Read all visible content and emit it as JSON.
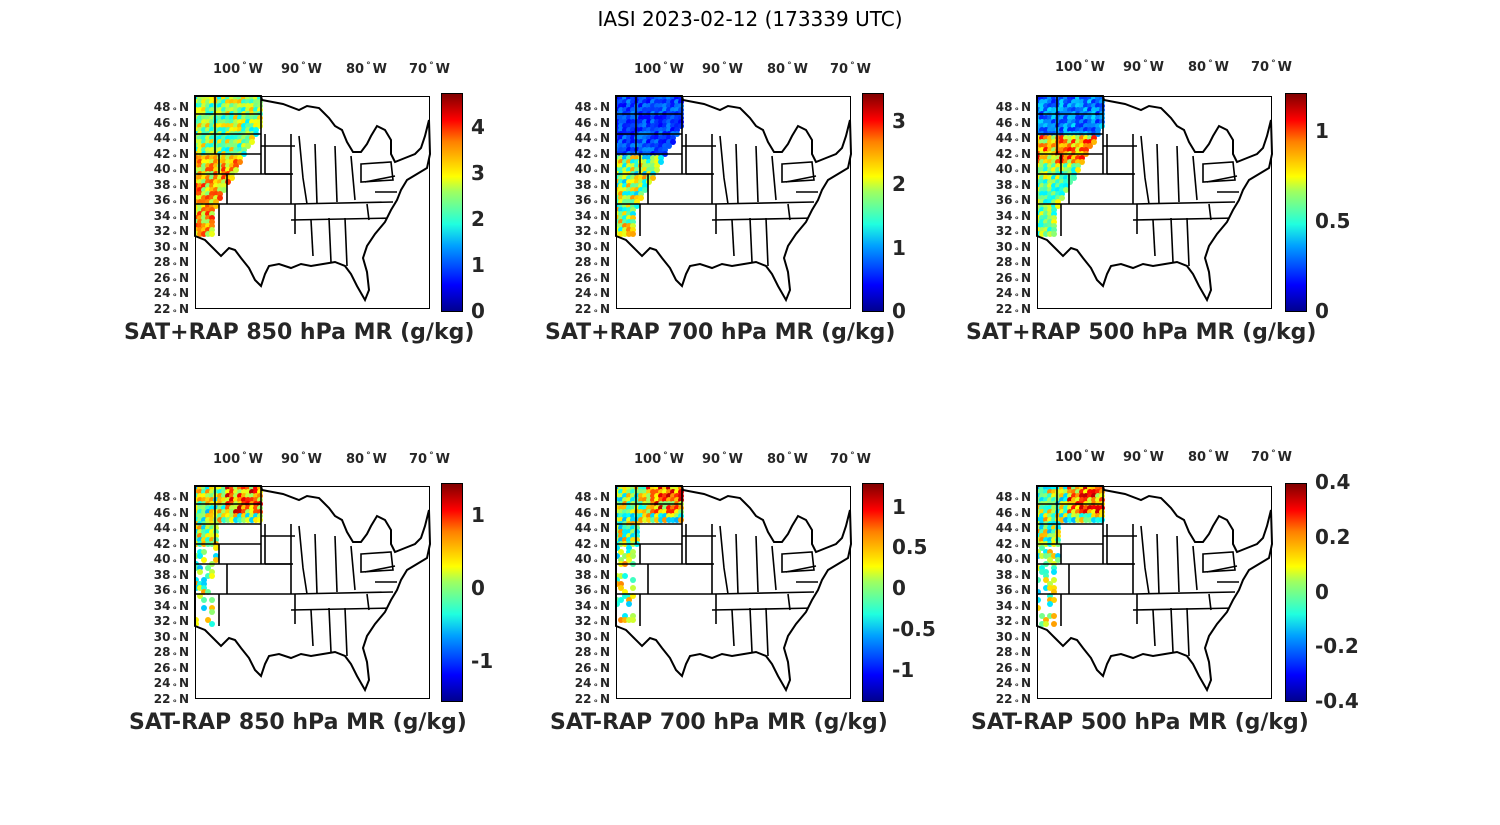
{
  "figure_title": "IASI 2023-02-12 (173339 UTC)",
  "lon_labels": [
    {
      "deg": "100",
      "dir": "W"
    },
    {
      "deg": "90",
      "dir": "W"
    },
    {
      "deg": "80",
      "dir": "W"
    },
    {
      "deg": "70",
      "dir": "W"
    }
  ],
  "lat_labels": [
    {
      "deg": "48",
      "dir": "N"
    },
    {
      "deg": "46",
      "dir": "N"
    },
    {
      "deg": "44",
      "dir": "N"
    },
    {
      "deg": "42",
      "dir": "N"
    },
    {
      "deg": "40",
      "dir": "N"
    },
    {
      "deg": "38",
      "dir": "N"
    },
    {
      "deg": "36",
      "dir": "N"
    },
    {
      "deg": "34",
      "dir": "N"
    },
    {
      "deg": "32",
      "dir": "N"
    },
    {
      "deg": "30",
      "dir": "N"
    },
    {
      "deg": "28",
      "dir": "N"
    },
    {
      "deg": "26",
      "dir": "N"
    },
    {
      "deg": "24",
      "dir": "N"
    },
    {
      "deg": "22",
      "dir": "N"
    }
  ],
  "colormap": "jet",
  "panels": [
    {
      "id": "sat-rap-sum-850",
      "title": "SAT+RAP 850 hPa MR (g/kg)",
      "colorbar": {
        "min": 0,
        "max": 4.75,
        "ticks": [
          "0",
          "1",
          "2",
          "3",
          "4"
        ],
        "tick_values": [
          0,
          1,
          2,
          3,
          4
        ]
      }
    },
    {
      "id": "sat-rap-sum-700",
      "title": "SAT+RAP 700 hPa MR (g/kg)",
      "colorbar": {
        "min": 0,
        "max": 3.45,
        "ticks": [
          "0",
          "1",
          "2",
          "3"
        ],
        "tick_values": [
          0,
          1,
          2,
          3
        ]
      }
    },
    {
      "id": "sat-rap-sum-500",
      "title": "SAT+RAP 500 hPa MR (g/kg)",
      "colorbar": {
        "min": 0,
        "max": 1.22,
        "ticks": [
          "0",
          "0.5",
          "1"
        ],
        "tick_values": [
          0,
          0.5,
          1
        ]
      }
    },
    {
      "id": "sat-rap-diff-850",
      "title": "SAT-RAP 850 hPa MR (g/kg)",
      "colorbar": {
        "min": -1.55,
        "max": 1.45,
        "ticks": [
          "-1",
          "0",
          "1"
        ],
        "tick_values": [
          -1,
          0,
          1
        ]
      }
    },
    {
      "id": "sat-rap-diff-700",
      "title": "SAT-RAP 700 hPa MR (g/kg)",
      "colorbar": {
        "min": -1.38,
        "max": 1.3,
        "ticks": [
          "-1",
          "-0.5",
          "0",
          "0.5",
          "1"
        ],
        "tick_values": [
          -1,
          -0.5,
          0,
          0.5,
          1
        ]
      }
    },
    {
      "id": "sat-rap-diff-500",
      "title": "SAT-RAP 500 hPa MR (g/kg)",
      "colorbar": {
        "min": -0.4,
        "max": 0.4,
        "ticks": [
          "-0.4",
          "-0.2",
          "0",
          "0.2",
          "0.4"
        ],
        "tick_values": [
          -0.4,
          -0.2,
          0,
          0.2,
          0.4
        ]
      }
    }
  ]
}
